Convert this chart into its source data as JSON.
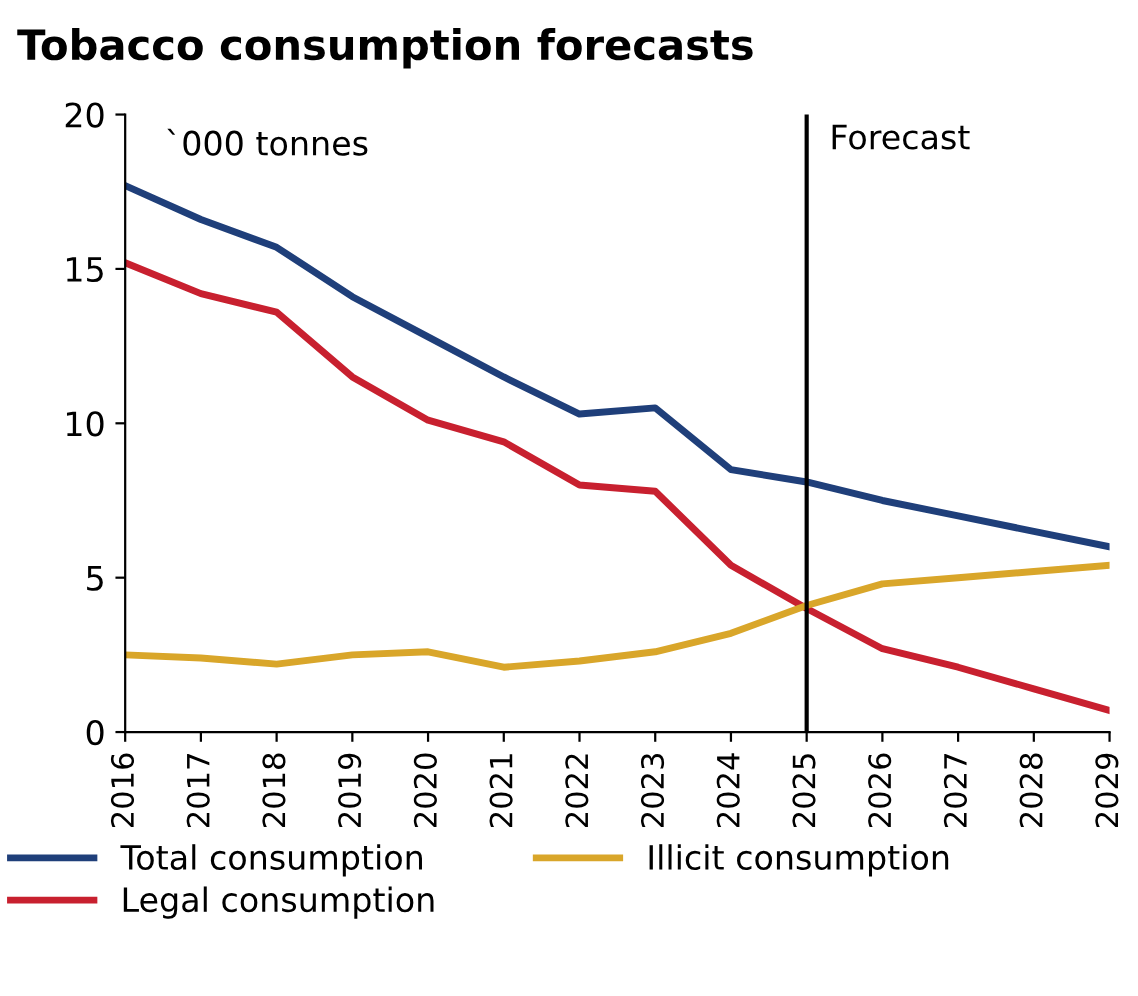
{
  "chart_data": {
    "type": "line",
    "title": "Tobacco consumption forecasts",
    "x": [
      2016,
      2017,
      2018,
      2019,
      2020,
      2021,
      2022,
      2023,
      2024,
      2025,
      2026,
      2027,
      2028,
      2029
    ],
    "series": [
      {
        "name": "Total consumption",
        "color": "#1f3f7a",
        "values": [
          17.7,
          16.6,
          15.7,
          14.1,
          12.8,
          11.5,
          10.3,
          10.5,
          8.5,
          8.1,
          7.5,
          7.0,
          6.5,
          6.0
        ]
      },
      {
        "name": "Legal consumption",
        "color": "#c8202f",
        "values": [
          15.2,
          14.2,
          13.6,
          11.5,
          10.1,
          9.4,
          8.0,
          7.8,
          5.4,
          4.0,
          2.7,
          2.1,
          1.4,
          0.7
        ]
      },
      {
        "name": "Illicit consumption",
        "color": "#d9a62a",
        "values": [
          2.5,
          2.4,
          2.2,
          2.5,
          2.6,
          2.1,
          2.3,
          2.6,
          3.2,
          4.1,
          4.8,
          5.0,
          5.2,
          5.4
        ]
      }
    ],
    "xlim": [
      2016,
      2029
    ],
    "xticks": [
      2016,
      2017,
      2018,
      2019,
      2020,
      2021,
      2022,
      2023,
      2024,
      2025,
      2026,
      2027,
      2028,
      2029
    ],
    "ylim": [
      0,
      20
    ],
    "yticks": [
      0,
      5,
      10,
      15,
      20
    ],
    "annotations": [
      "`000 tonnes"
    ],
    "ref_lines": [
      {
        "axis": "x",
        "value": 2025,
        "label": "Forecast",
        "color": "#000000"
      }
    ],
    "grid": false,
    "legend": "bottom",
    "marker": "none",
    "line_style": "solid"
  }
}
